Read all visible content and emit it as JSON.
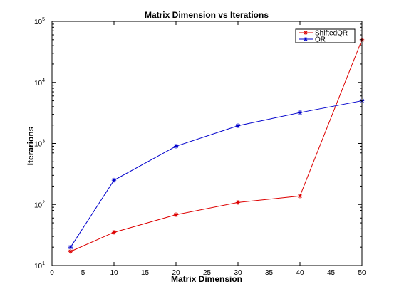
{
  "chart_data": {
    "type": "line",
    "title": "Matrix Dimension vs Iterations",
    "xlabel": "Matrix Dimension",
    "ylabel": "Iterarions",
    "xlim": [
      0,
      50
    ],
    "ylim": [
      10,
      100000
    ],
    "yscale": "log",
    "grid": false,
    "legend_position": "top-right",
    "x_ticks": [
      0,
      5,
      10,
      15,
      20,
      25,
      30,
      35,
      40,
      45,
      50
    ],
    "x_tick_labels": [
      "0",
      "5",
      "10",
      "15",
      "20",
      "25",
      "30",
      "35",
      "40",
      "45",
      "50"
    ],
    "y_ticks": [
      10,
      100,
      1000,
      10000,
      100000
    ],
    "y_tick_labels": [
      {
        "base": "10",
        "exp": "1"
      },
      {
        "base": "10",
        "exp": "2"
      },
      {
        "base": "10",
        "exp": "3"
      },
      {
        "base": "10",
        "exp": "4"
      },
      {
        "base": "10",
        "exp": "5"
      }
    ],
    "series": [
      {
        "name": "ShiftedQR",
        "color": "#dd0000",
        "marker": "asterisk",
        "x": [
          3,
          10,
          20,
          30,
          40,
          50
        ],
        "y": [
          17,
          35,
          68,
          108,
          138,
          50000
        ]
      },
      {
        "name": "QR",
        "color": "#0000cc",
        "marker": "asterisk",
        "x": [
          3,
          10,
          20,
          30,
          40,
          50
        ],
        "y": [
          20,
          250,
          900,
          1950,
          3200,
          5000
        ]
      }
    ]
  }
}
